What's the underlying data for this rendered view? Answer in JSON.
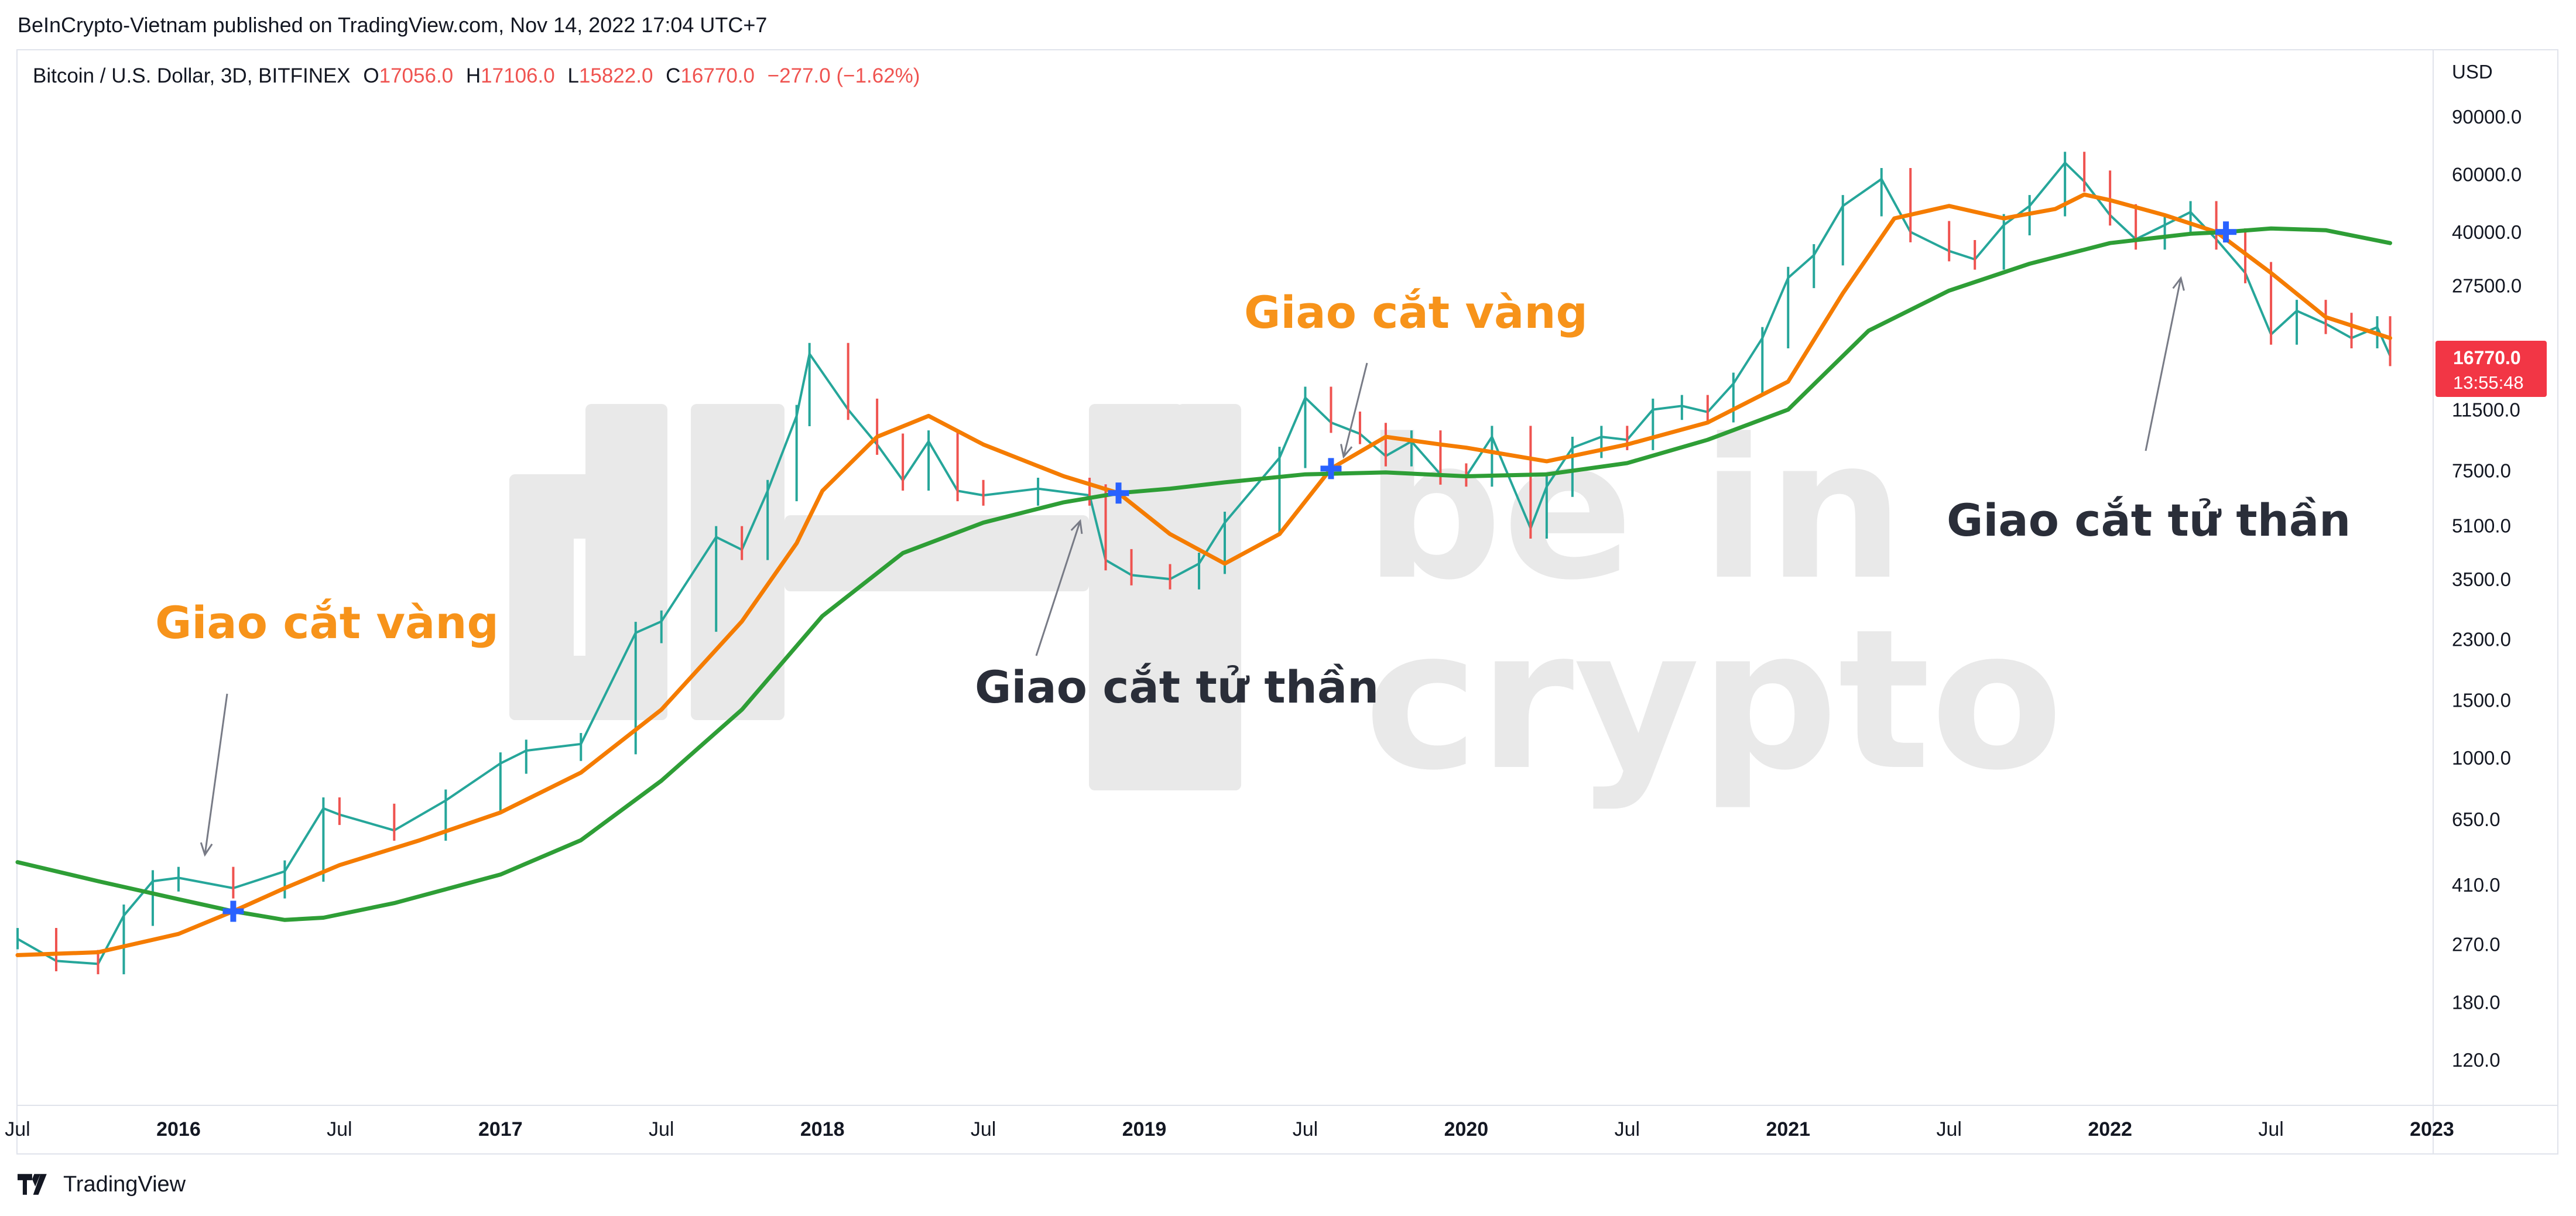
{
  "header": {
    "attribution": "BeInCrypto-Vietnam published on TradingView.com, Nov 14, 2022 17:04 UTC+7"
  },
  "legend": {
    "symbol": "Bitcoin / U.S. Dollar, 3D, BITFINEX",
    "open_key": "O",
    "open": "17056.0",
    "high_key": "H",
    "high": "17106.0",
    "low_key": "L",
    "low": "15822.0",
    "close_key": "C",
    "close": "16770.0",
    "change": "−277.0 (−1.62%)"
  },
  "price_badge": {
    "price": "16770.0",
    "countdown": "13:55:48",
    "color": "#f23645"
  },
  "watermark": {
    "text_line1": "be in",
    "text_line2": "crypto"
  },
  "annotations": [
    {
      "label": "Giao cắt vàng",
      "color": "#f7931a",
      "date": "2016.17",
      "price": 340
    },
    {
      "label": "Giao cắt tử thần",
      "color": "#2a2e39",
      "date": "2018.92",
      "price": 6400
    },
    {
      "label": "Giao cắt vàng",
      "color": "#f7931a",
      "date": "2019.58",
      "price": 7600
    },
    {
      "label": "Giao cắt tử thần",
      "color": "#2a2e39",
      "date": "2022.36",
      "price": 40000
    }
  ],
  "footer": {
    "brand": "TradingView"
  },
  "chart_data": {
    "type": "line",
    "title": "",
    "xlabel": "",
    "ylabel": "USD",
    "y_scale": "log",
    "ylim": [
      90,
      110000
    ],
    "xlim": [
      "2015-07",
      "2023-01"
    ],
    "x_ticks": [
      "Jul",
      "2016",
      "Jul",
      "2017",
      "Jul",
      "2018",
      "Jul",
      "2019",
      "Jul",
      "2020",
      "Jul",
      "2021",
      "Jul",
      "2022",
      "Jul",
      "2023"
    ],
    "x_tick_values": [
      2015.5,
      2016.0,
      2016.5,
      2017.0,
      2017.5,
      2018.0,
      2018.5,
      2019.0,
      2019.5,
      2020.0,
      2020.5,
      2021.0,
      2021.5,
      2022.0,
      2022.5,
      2023.0
    ],
    "y_ticks": [
      "90000.0",
      "60000.0",
      "40000.0",
      "27500.0",
      "11500.0",
      "7500.0",
      "5100.0",
      "3500.0",
      "2300.0",
      "1500.0",
      "1000.0",
      "650.0",
      "410.0",
      "270.0",
      "180.0",
      "120.0"
    ],
    "y_tick_values": [
      90000,
      60000,
      40000,
      27500,
      11500,
      7500,
      5100,
      3500,
      2300,
      1500,
      1000,
      650,
      410,
      270,
      180,
      120
    ],
    "grid": false,
    "series": [
      {
        "role": "price",
        "color": "#26a69a",
        "x": [
          2015.5,
          2015.62,
          2015.75,
          2015.83,
          2015.92,
          2016.0,
          2016.17,
          2016.33,
          2016.45,
          2016.5,
          2016.67,
          2016.83,
          2017.0,
          2017.08,
          2017.25,
          2017.42,
          2017.5,
          2017.67,
          2017.75,
          2017.83,
          2017.92,
          2017.96,
          2018.08,
          2018.17,
          2018.25,
          2018.33,
          2018.42,
          2018.5,
          2018.67,
          2018.83,
          2018.88,
          2018.96,
          2019.08,
          2019.17,
          2019.25,
          2019.42,
          2019.5,
          2019.58,
          2019.67,
          2019.75,
          2019.83,
          2019.92,
          2020.0,
          2020.08,
          2020.2,
          2020.25,
          2020.33,
          2020.42,
          2020.5,
          2020.58,
          2020.67,
          2020.75,
          2020.83,
          2020.92,
          2021.0,
          2021.08,
          2021.17,
          2021.29,
          2021.38,
          2021.5,
          2021.58,
          2021.67,
          2021.75,
          2021.86,
          2021.92,
          2022.0,
          2022.08,
          2022.17,
          2022.25,
          2022.33,
          2022.42,
          2022.5,
          2022.58,
          2022.67,
          2022.75,
          2022.83,
          2022.87
        ],
        "values": [
          280,
          240,
          235,
          330,
          420,
          430,
          400,
          450,
          700,
          670,
          600,
          740,
          960,
          1050,
          1100,
          2400,
          2600,
          4700,
          4300,
          6500,
          11000,
          17000,
          11500,
          9000,
          7000,
          9200,
          6500,
          6300,
          6600,
          6300,
          4000,
          3600,
          3500,
          3900,
          5200,
          8200,
          12500,
          10500,
          9700,
          8300,
          9200,
          7300,
          7200,
          9500,
          5000,
          6700,
          8800,
          9500,
          9300,
          11500,
          11800,
          11300,
          13800,
          19000,
          29000,
          34000,
          48000,
          58000,
          40000,
          35000,
          33000,
          42000,
          48000,
          65000,
          57000,
          45000,
          38000,
          42000,
          46000,
          38000,
          30000,
          19500,
          23000,
          21000,
          19000,
          20500,
          16770
        ]
      },
      {
        "role": "ma-short",
        "color": "#f57c00",
        "x": [
          2015.5,
          2015.75,
          2016.0,
          2016.17,
          2016.33,
          2016.5,
          2016.75,
          2017.0,
          2017.25,
          2017.5,
          2017.75,
          2017.92,
          2018.0,
          2018.17,
          2018.33,
          2018.5,
          2018.75,
          2018.92,
          2019.08,
          2019.25,
          2019.42,
          2019.58,
          2019.75,
          2019.92,
          2020.0,
          2020.25,
          2020.5,
          2020.75,
          2021.0,
          2021.17,
          2021.33,
          2021.5,
          2021.67,
          2021.83,
          2021.92,
          2022.0,
          2022.17,
          2022.33,
          2022.5,
          2022.67,
          2022.87
        ],
        "values": [
          250,
          255,
          290,
          340,
          400,
          470,
          560,
          680,
          900,
          1400,
          2600,
          4500,
          6500,
          9500,
          11000,
          9000,
          7200,
          6400,
          4800,
          3900,
          4800,
          7600,
          9500,
          9000,
          8800,
          8000,
          9000,
          10500,
          14000,
          26000,
          44000,
          48000,
          44000,
          47000,
          52000,
          50000,
          45000,
          40000,
          30000,
          22000,
          19000
        ]
      },
      {
        "role": "ma-long",
        "color": "#2e9e36",
        "x": [
          2015.5,
          2015.75,
          2016.0,
          2016.17,
          2016.33,
          2016.45,
          2016.67,
          2017.0,
          2017.25,
          2017.5,
          2017.75,
          2018.0,
          2018.25,
          2018.5,
          2018.75,
          2018.92,
          2019.08,
          2019.25,
          2019.5,
          2019.75,
          2020.0,
          2020.25,
          2020.5,
          2020.75,
          2021.0,
          2021.25,
          2021.5,
          2021.75,
          2022.0,
          2022.25,
          2022.36,
          2022.5,
          2022.67,
          2022.87
        ],
        "values": [
          480,
          420,
          370,
          340,
          320,
          325,
          360,
          440,
          560,
          850,
          1400,
          2700,
          4200,
          5200,
          6000,
          6400,
          6600,
          6900,
          7300,
          7400,
          7200,
          7300,
          7900,
          9300,
          11500,
          20000,
          26500,
          32000,
          37000,
          39500,
          40000,
          41000,
          40500,
          37000
        ]
      }
    ],
    "crossovers": [
      {
        "x": 2016.17,
        "y": 340,
        "color": "#2962ff"
      },
      {
        "x": 2018.92,
        "y": 6400,
        "color": "#2962ff"
      },
      {
        "x": 2019.58,
        "y": 7600,
        "color": "#2962ff"
      },
      {
        "x": 2022.36,
        "y": 40000,
        "color": "#2962ff"
      }
    ]
  }
}
